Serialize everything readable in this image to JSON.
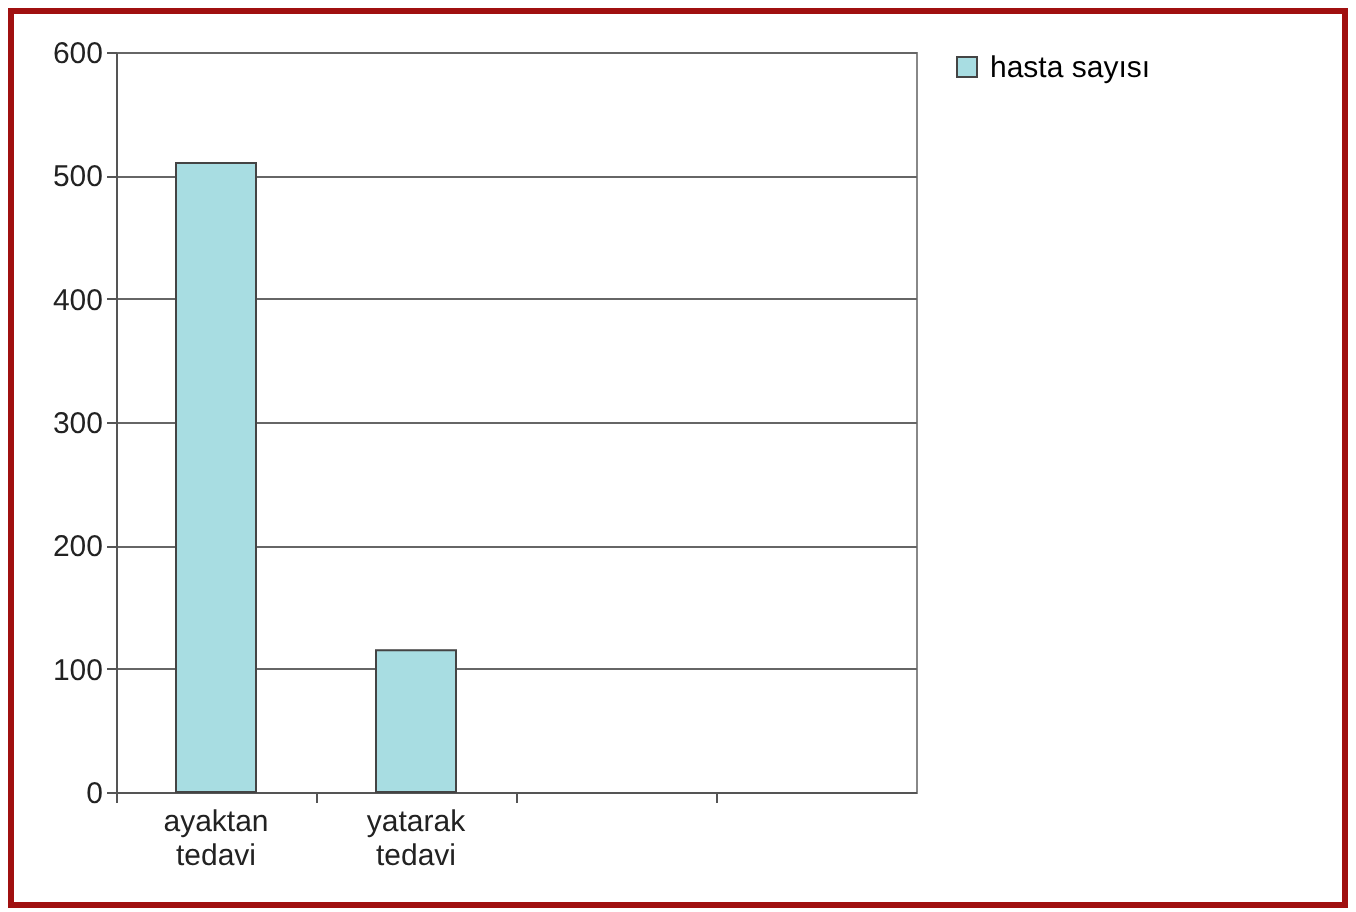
{
  "chart_data": {
    "type": "bar",
    "categories": [
      "ayaktan tedavi",
      "yatarak tedavi",
      null,
      null
    ],
    "series": [
      {
        "name": "hasta sayısı",
        "color": "#a8dde2",
        "values": [
          510,
          115,
          null,
          null
        ]
      }
    ],
    "ylim": [
      0,
      600
    ],
    "yticks": [
      0,
      100,
      200,
      300,
      400,
      500,
      600
    ],
    "grid": "y",
    "legend": "right"
  }
}
